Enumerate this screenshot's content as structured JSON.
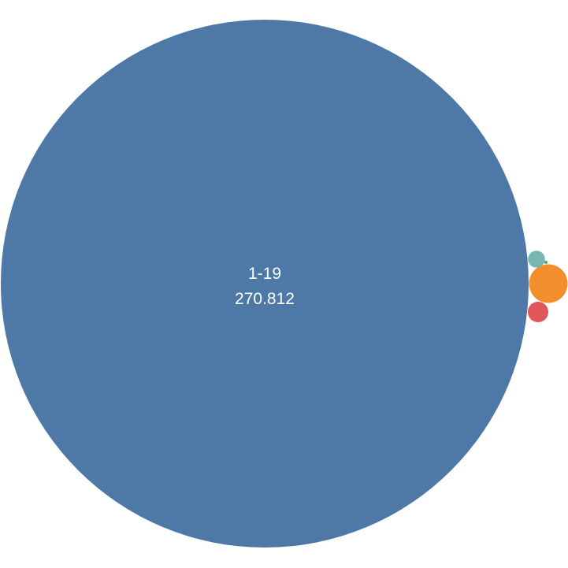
{
  "chart_data": {
    "type": "bubble",
    "title": "",
    "bubbles": [
      {
        "category": "1-19",
        "value": 270.812,
        "value_label": "270.812",
        "color": "#4e79a7",
        "labeled": true
      },
      {
        "category": "",
        "value": 1.45,
        "value_label": "",
        "color": "#f28e2b",
        "labeled": false
      },
      {
        "category": "",
        "value": 0.41,
        "value_label": "",
        "color": "#e15759",
        "labeled": false
      },
      {
        "category": "",
        "value": 0.28,
        "value_label": "",
        "color": "#76b7b2",
        "labeled": false
      },
      {
        "category": "",
        "value": 0.01,
        "value_label": "",
        "color": "#59a14f",
        "labeled": false
      }
    ]
  }
}
